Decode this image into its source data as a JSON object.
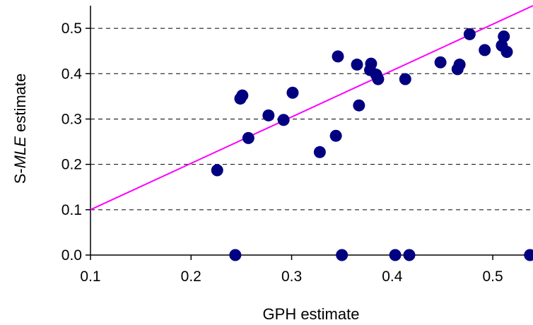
{
  "chart_data": {
    "type": "scatter",
    "title": "",
    "xlabel": "GPH estimate",
    "ylabel": {
      "prefix": "S-",
      "italic": "MLE",
      "suffix": " estimate"
    },
    "xlim": [
      0.1,
      0.54
    ],
    "ylim": [
      0.0,
      0.55
    ],
    "xticks": [
      0.1,
      0.2,
      0.3,
      0.4,
      0.5
    ],
    "xtick_labels": [
      "0.1",
      "0.2",
      "0.3",
      "0.4",
      "0.5"
    ],
    "yticks": [
      0.0,
      0.1,
      0.2,
      0.3,
      0.4,
      0.5
    ],
    "ytick_labels": [
      "0.0",
      "0.1",
      "0.2",
      "0.3",
      "0.4",
      "0.5"
    ],
    "grid": "horizontal dashed",
    "legend": "none",
    "series": [
      {
        "marker": "circle",
        "color": "#000080",
        "points": [
          {
            "x": 0.226,
            "y": 0.187
          },
          {
            "x": 0.249,
            "y": 0.345
          },
          {
            "x": 0.251,
            "y": 0.352
          },
          {
            "x": 0.257,
            "y": 0.258
          },
          {
            "x": 0.277,
            "y": 0.308
          },
          {
            "x": 0.292,
            "y": 0.298
          },
          {
            "x": 0.301,
            "y": 0.358
          },
          {
            "x": 0.328,
            "y": 0.227
          },
          {
            "x": 0.344,
            "y": 0.263
          },
          {
            "x": 0.346,
            "y": 0.438
          },
          {
            "x": 0.365,
            "y": 0.42
          },
          {
            "x": 0.367,
            "y": 0.33
          },
          {
            "x": 0.378,
            "y": 0.408
          },
          {
            "x": 0.379,
            "y": 0.422
          },
          {
            "x": 0.384,
            "y": 0.398
          },
          {
            "x": 0.386,
            "y": 0.388
          },
          {
            "x": 0.413,
            "y": 0.388
          },
          {
            "x": 0.448,
            "y": 0.425
          },
          {
            "x": 0.465,
            "y": 0.41
          },
          {
            "x": 0.467,
            "y": 0.42
          },
          {
            "x": 0.477,
            "y": 0.487
          },
          {
            "x": 0.492,
            "y": 0.452
          },
          {
            "x": 0.509,
            "y": 0.462
          },
          {
            "x": 0.511,
            "y": 0.482
          },
          {
            "x": 0.514,
            "y": 0.448
          },
          {
            "x": 0.244,
            "y": 0.0
          },
          {
            "x": 0.35,
            "y": 0.0
          },
          {
            "x": 0.403,
            "y": 0.0
          },
          {
            "x": 0.417,
            "y": 0.0
          },
          {
            "x": 0.537,
            "y": 0.0
          }
        ]
      }
    ],
    "fit_line": {
      "color": "#ff00ff",
      "x": [
        0.1,
        0.54
      ],
      "y": [
        0.1,
        0.55
      ]
    }
  }
}
